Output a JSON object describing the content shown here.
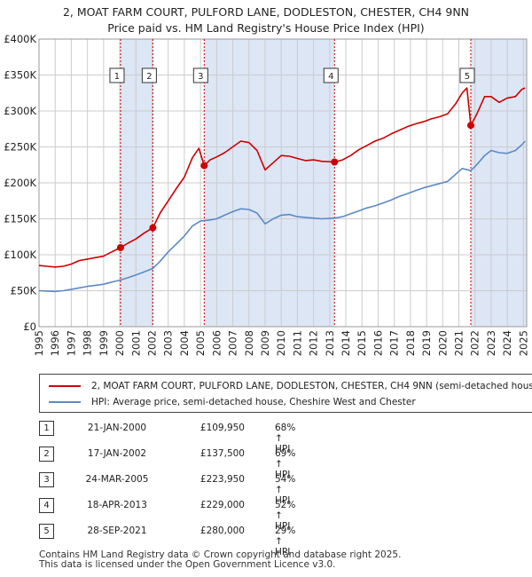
{
  "chart_data": {
    "type": "line",
    "title": "2, MOAT FARM COURT, PULFORD LANE, DODLESTON, CHESTER, CH4 9NN",
    "subtitle": "Price paid vs. HM Land Registry's House Price Index (HPI)",
    "xlabel": "",
    "ylabel": "",
    "xlim": [
      1995,
      2025.2
    ],
    "ylim": [
      0,
      400000
    ],
    "y_ticks": [
      0,
      50000,
      100000,
      150000,
      200000,
      250000,
      300000,
      350000,
      400000
    ],
    "y_tick_labels": [
      "£0",
      "£50K",
      "£100K",
      "£150K",
      "£200K",
      "£250K",
      "£300K",
      "£350K",
      "£400K"
    ],
    "x_ticks": [
      1995,
      1996,
      1997,
      1998,
      1999,
      2000,
      2001,
      2002,
      2003,
      2004,
      2005,
      2006,
      2007,
      2008,
      2009,
      2010,
      2011,
      2012,
      2013,
      2014,
      2015,
      2016,
      2017,
      2018,
      2019,
      2020,
      2021,
      2022,
      2023,
      2024,
      2025
    ],
    "grid": true,
    "legend_position": "below",
    "series": [
      {
        "name": "2, MOAT FARM COURT, PULFORD LANE, DODLESTON, CHESTER, CH4 9NN (semi-detached house)",
        "color": "#cc0000",
        "points": [
          [
            1995.0,
            85000
          ],
          [
            1995.5,
            84000
          ],
          [
            1996.0,
            83000
          ],
          [
            1996.5,
            84000
          ],
          [
            1997.0,
            87000
          ],
          [
            1997.5,
            92000
          ],
          [
            1998.0,
            94000
          ],
          [
            1998.5,
            96000
          ],
          [
            1999.0,
            98000
          ],
          [
            1999.5,
            104000
          ],
          [
            2000.05,
            109950
          ],
          [
            2000.5,
            116000
          ],
          [
            2001.0,
            122000
          ],
          [
            2001.5,
            130000
          ],
          [
            2002.05,
            137500
          ],
          [
            2002.5,
            158000
          ],
          [
            2003.0,
            175000
          ],
          [
            2003.5,
            192000
          ],
          [
            2004.0,
            208000
          ],
          [
            2004.5,
            235000
          ],
          [
            2004.9,
            248000
          ],
          [
            2005.23,
            223950
          ],
          [
            2005.6,
            232000
          ],
          [
            2006.0,
            236000
          ],
          [
            2006.5,
            242000
          ],
          [
            2007.0,
            250000
          ],
          [
            2007.5,
            258000
          ],
          [
            2008.0,
            256000
          ],
          [
            2008.5,
            245000
          ],
          [
            2009.0,
            218000
          ],
          [
            2009.5,
            228000
          ],
          [
            2010.0,
            238000
          ],
          [
            2010.5,
            237000
          ],
          [
            2011.0,
            234000
          ],
          [
            2011.5,
            231000
          ],
          [
            2012.0,
            232000
          ],
          [
            2012.5,
            230000
          ],
          [
            2013.3,
            229000
          ],
          [
            2013.8,
            232000
          ],
          [
            2014.3,
            238000
          ],
          [
            2014.8,
            246000
          ],
          [
            2015.3,
            252000
          ],
          [
            2015.8,
            258000
          ],
          [
            2016.3,
            262000
          ],
          [
            2016.8,
            268000
          ],
          [
            2017.3,
            273000
          ],
          [
            2017.8,
            278000
          ],
          [
            2018.3,
            282000
          ],
          [
            2018.8,
            285000
          ],
          [
            2019.3,
            289000
          ],
          [
            2019.8,
            292000
          ],
          [
            2020.3,
            296000
          ],
          [
            2020.8,
            310000
          ],
          [
            2021.2,
            325000
          ],
          [
            2021.5,
            332000
          ],
          [
            2021.74,
            280000
          ],
          [
            2022.1,
            295000
          ],
          [
            2022.6,
            320000
          ],
          [
            2023.0,
            320000
          ],
          [
            2023.5,
            312000
          ],
          [
            2024.0,
            318000
          ],
          [
            2024.5,
            320000
          ],
          [
            2024.9,
            330000
          ],
          [
            2025.1,
            332000
          ]
        ]
      },
      {
        "name": "HPI: Average price, semi-detached house, Cheshire West and Chester",
        "color": "#5b8ac6",
        "points": [
          [
            1995.0,
            50000
          ],
          [
            1995.5,
            49500
          ],
          [
            1996.0,
            49000
          ],
          [
            1996.5,
            50000
          ],
          [
            1997.0,
            52000
          ],
          [
            1997.5,
            54000
          ],
          [
            1998.0,
            56000
          ],
          [
            1998.5,
            57500
          ],
          [
            1999.0,
            59000
          ],
          [
            1999.5,
            62000
          ],
          [
            2000.05,
            65000
          ],
          [
            2000.5,
            68000
          ],
          [
            2001.0,
            72000
          ],
          [
            2001.5,
            76000
          ],
          [
            2002.05,
            81000
          ],
          [
            2002.5,
            91000
          ],
          [
            2003.0,
            104000
          ],
          [
            2003.5,
            115000
          ],
          [
            2004.0,
            126000
          ],
          [
            2004.5,
            140000
          ],
          [
            2005.0,
            147000
          ],
          [
            2005.5,
            148000
          ],
          [
            2006.0,
            150000
          ],
          [
            2006.5,
            155000
          ],
          [
            2007.0,
            160000
          ],
          [
            2007.5,
            164000
          ],
          [
            2008.0,
            163000
          ],
          [
            2008.5,
            158000
          ],
          [
            2009.0,
            143000
          ],
          [
            2009.5,
            150000
          ],
          [
            2010.0,
            155000
          ],
          [
            2010.5,
            156000
          ],
          [
            2011.0,
            153000
          ],
          [
            2011.5,
            152000
          ],
          [
            2012.0,
            151000
          ],
          [
            2012.5,
            150000
          ],
          [
            2013.3,
            151000
          ],
          [
            2013.8,
            153000
          ],
          [
            2014.3,
            157000
          ],
          [
            2014.8,
            161000
          ],
          [
            2015.3,
            165000
          ],
          [
            2015.8,
            168000
          ],
          [
            2016.3,
            172000
          ],
          [
            2016.8,
            176000
          ],
          [
            2017.3,
            181000
          ],
          [
            2017.8,
            185000
          ],
          [
            2018.3,
            189000
          ],
          [
            2018.8,
            193000
          ],
          [
            2019.3,
            196000
          ],
          [
            2019.8,
            199000
          ],
          [
            2020.3,
            202000
          ],
          [
            2020.8,
            212000
          ],
          [
            2021.2,
            220000
          ],
          [
            2021.74,
            217000
          ],
          [
            2022.1,
            225000
          ],
          [
            2022.6,
            238000
          ],
          [
            2023.0,
            245000
          ],
          [
            2023.5,
            242000
          ],
          [
            2024.0,
            241000
          ],
          [
            2024.5,
            245000
          ],
          [
            2024.9,
            253000
          ],
          [
            2025.1,
            258000
          ]
        ]
      }
    ],
    "sales": [
      {
        "label": "1",
        "x": 2000.05,
        "price": 109950
      },
      {
        "label": "2",
        "x": 2002.05,
        "price": 137500
      },
      {
        "label": "3",
        "x": 2005.23,
        "price": 223950
      },
      {
        "label": "4",
        "x": 2013.3,
        "price": 229000
      },
      {
        "label": "5",
        "x": 2021.74,
        "price": 280000
      }
    ],
    "shaded_ranges": [
      [
        2000.05,
        2002.05
      ],
      [
        2005.23,
        2013.3
      ],
      [
        2021.74,
        2025.2
      ]
    ],
    "colors": {
      "price": "#cc0000",
      "hpi": "#5b8ac6",
      "shade": "#dde6f5",
      "grid": "#cccccc"
    }
  },
  "legend": {
    "price_label": "2, MOAT FARM COURT, PULFORD LANE, DODLESTON, CHESTER, CH4 9NN (semi-detached house)",
    "hpi_label": "HPI: Average price, semi-detached house, Cheshire West and Chester"
  },
  "transactions": [
    {
      "num": "1",
      "date": "21-JAN-2000",
      "price": "£109,950",
      "hpi": "68% ↑ HPI"
    },
    {
      "num": "2",
      "date": "17-JAN-2002",
      "price": "£137,500",
      "hpi": "69% ↑ HPI"
    },
    {
      "num": "3",
      "date": "24-MAR-2005",
      "price": "£223,950",
      "hpi": "54% ↑ HPI"
    },
    {
      "num": "4",
      "date": "18-APR-2013",
      "price": "£229,000",
      "hpi": "52% ↑ HPI"
    },
    {
      "num": "5",
      "date": "28-SEP-2021",
      "price": "£280,000",
      "hpi": "29% ↑ HPI"
    }
  ],
  "footer": {
    "line1": "Contains HM Land Registry data © Crown copyright and database right 2025.",
    "line2": "This data is licensed under the Open Government Licence v3.0."
  }
}
